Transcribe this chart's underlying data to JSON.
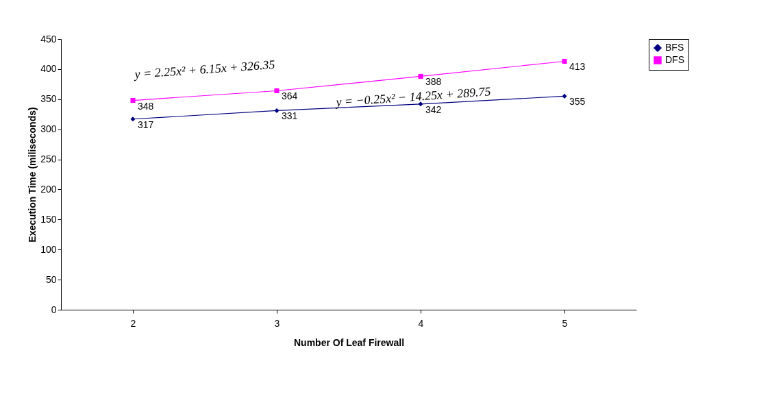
{
  "chart_data": {
    "type": "line",
    "xlabel": "Number Of Leaf Firewall",
    "ylabel": "Execution Time (miliseconds)",
    "categories": [
      "2",
      "3",
      "4",
      "5"
    ],
    "series": [
      {
        "name": "BFS",
        "color": "#000080",
        "marker": "diamond",
        "values": [
          317,
          331,
          342,
          355
        ]
      },
      {
        "name": "DFS",
        "color": "#ff00ff",
        "marker": "square",
        "values": [
          348,
          364,
          388,
          413
        ]
      }
    ],
    "ylim": [
      0,
      450
    ],
    "yticks": [
      0,
      50,
      100,
      150,
      200,
      250,
      300,
      350,
      400,
      450
    ],
    "grid": false,
    "legend": "right",
    "data_labels": true,
    "annotations": [
      "y = 2.25x² + 6.15x + 326.35",
      "y = −0.25x² − 14.25x + 289.75"
    ]
  }
}
